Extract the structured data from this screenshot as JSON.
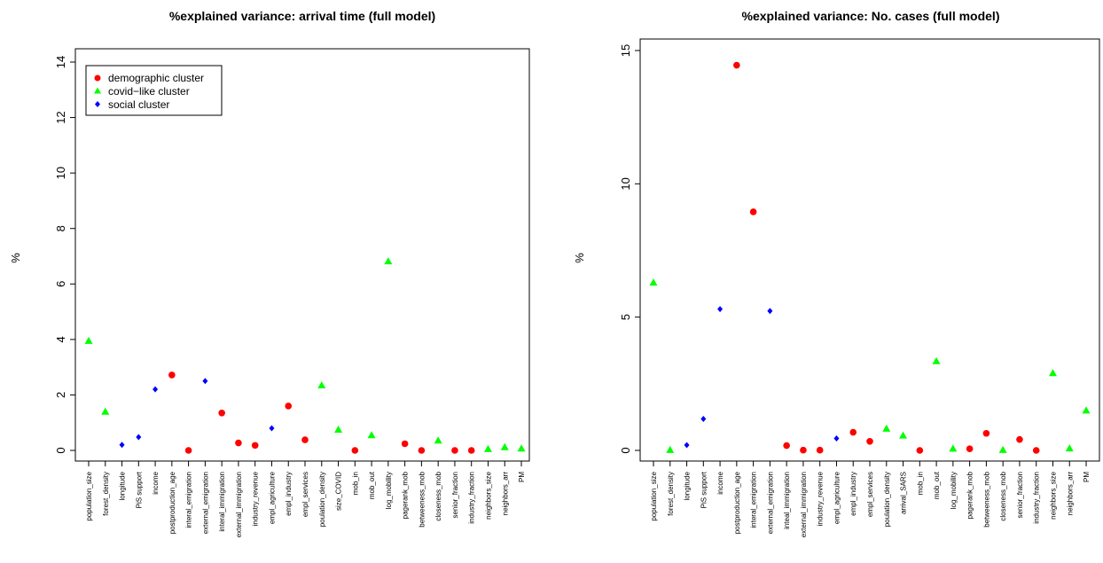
{
  "chart_data": [
    {
      "type": "scatter",
      "title": "%explained variance: arrival time (full  model)",
      "ylabel": "%",
      "ylim": [
        0,
        14
      ],
      "yticks": [
        0,
        2,
        4,
        6,
        8,
        10,
        12,
        14
      ],
      "legend_position": "top-left",
      "legend": [
        {
          "label": "demographic cluster",
          "color": "#ff0000",
          "marker": "circle"
        },
        {
          "label": "covid−like cluster",
          "color": "#00ff00",
          "marker": "triangle"
        },
        {
          "label": "social cluster",
          "color": "#0000ff",
          "marker": "diamond"
        }
      ],
      "categories": [
        "population_size",
        "forest_density",
        "longitude",
        "PiS support",
        "income",
        "postproduction_age",
        "interal_emigration",
        "external_emigration",
        "interal_immigration",
        "external_immigration",
        "industry_revenue",
        "empl_agriculture",
        "empl_industry",
        "empl_services",
        "poulation_density",
        "size_COVID",
        "mob_in",
        "mob_out",
        "log_mobility",
        "pagerank_mob",
        "betweeness_mob",
        "closeness_mob",
        "senior_fraction",
        "industry_fraction",
        "neighbors_size",
        "neighbors_arr",
        "PM"
      ],
      "values": [
        3.95,
        1.4,
        0.2,
        0.48,
        2.2,
        2.72,
        0.0,
        2.5,
        1.35,
        0.27,
        0.18,
        0.8,
        1.6,
        0.38,
        2.35,
        0.75,
        0.0,
        0.55,
        6.82,
        0.24,
        0.0,
        0.36,
        0.0,
        0.0,
        0.05,
        0.12,
        0.07
      ],
      "groups": [
        "covid",
        "covid",
        "social",
        "social",
        "social",
        "demographic",
        "demographic",
        "social",
        "demographic",
        "demographic",
        "demographic",
        "social",
        "demographic",
        "demographic",
        "covid",
        "covid",
        "demographic",
        "covid",
        "covid",
        "demographic",
        "demographic",
        "covid",
        "demographic",
        "demographic",
        "covid",
        "covid",
        "covid"
      ]
    },
    {
      "type": "scatter",
      "title": "%explained variance: No. cases (full  model)",
      "ylabel": "%",
      "ylim": [
        0,
        15
      ],
      "yticks": [
        0,
        5,
        10,
        15
      ],
      "categories": [
        "population_size",
        "forest_density",
        "longitude",
        "PiS support",
        "income",
        "postproduction_age",
        "interal_emigration",
        "external_emigration",
        "inteal_immigration",
        "external_immigration",
        "industry_revenue",
        "empl_agriculture",
        "empl_industry",
        "empl_services",
        "poulation_density",
        "arrival_SARS",
        "mob_in",
        "mob_out",
        "log_mobility",
        "pagerank_mob",
        "betweeness_mob",
        "closeness_mob",
        "senior_fraction",
        "industry_fraction",
        "neighbors_size",
        "neighbors_arr",
        "PM"
      ],
      "values": [
        6.3,
        0.02,
        0.2,
        1.18,
        5.3,
        14.45,
        8.95,
        5.23,
        0.18,
        0.01,
        0.01,
        0.45,
        0.68,
        0.34,
        0.82,
        0.56,
        0.0,
        3.35,
        0.07,
        0.06,
        0.64,
        0.02,
        0.41,
        0.0,
        2.9,
        0.08,
        1.5
      ],
      "groups": [
        "covid",
        "covid",
        "social",
        "social",
        "social",
        "demographic",
        "demographic",
        "social",
        "demographic",
        "demographic",
        "demographic",
        "social",
        "demographic",
        "demographic",
        "covid",
        "covid",
        "demographic",
        "covid",
        "covid",
        "demographic",
        "demographic",
        "covid",
        "demographic",
        "demographic",
        "covid",
        "covid",
        "covid"
      ]
    }
  ],
  "colors": {
    "demographic": "#ff0000",
    "covid": "#00ff00",
    "social": "#0000ff"
  }
}
